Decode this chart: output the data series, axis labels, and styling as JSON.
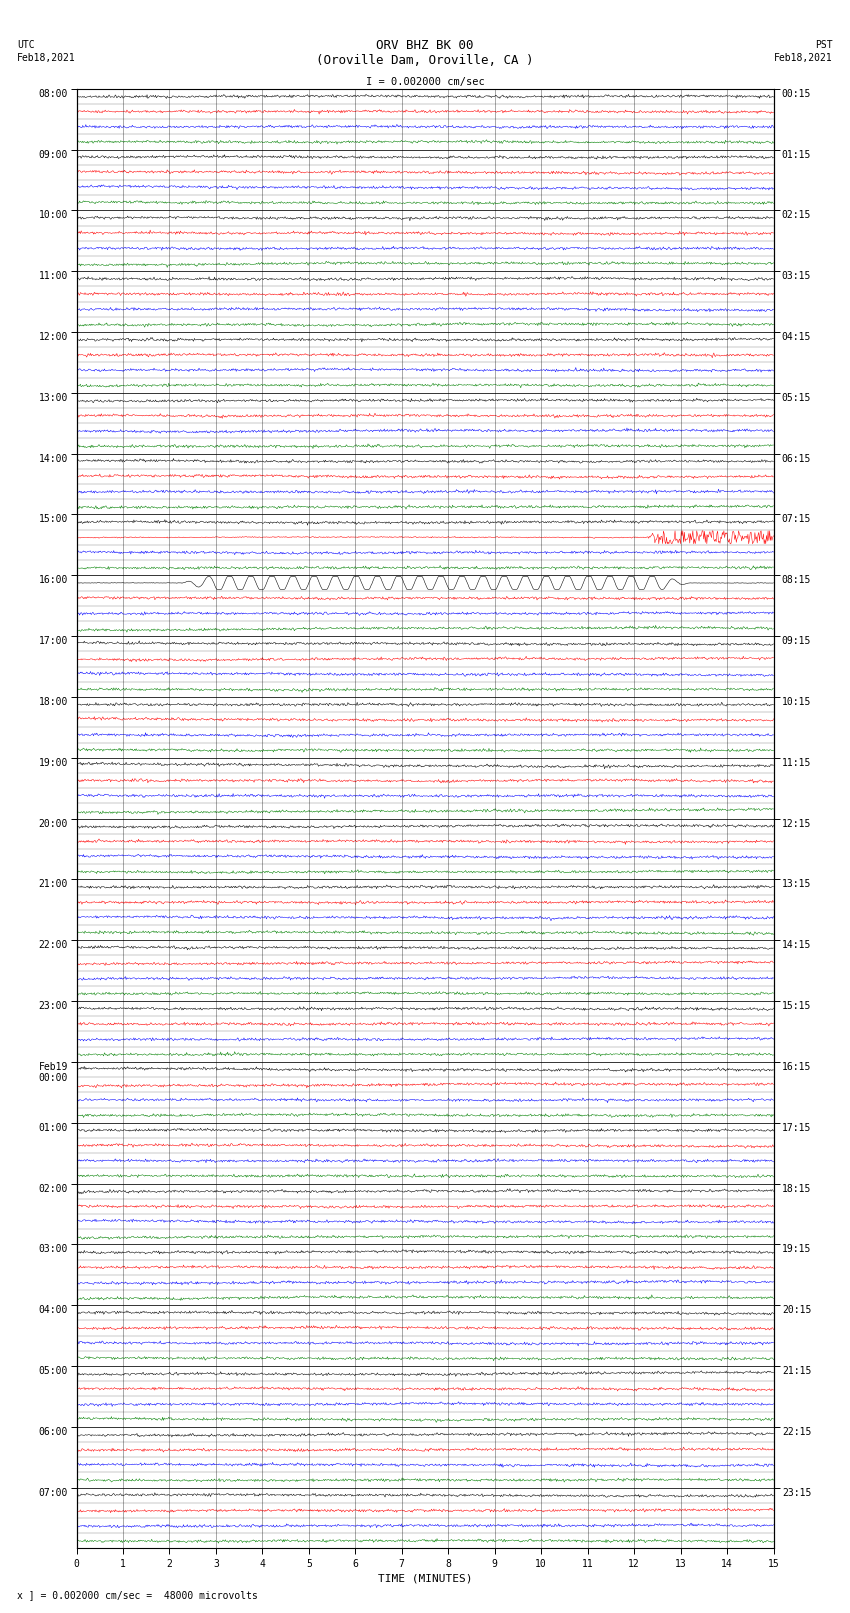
{
  "title_line1": "ORV BHZ BK 00",
  "title_line2": "(Oroville Dam, Oroville, CA )",
  "scale_text": "I = 0.002000 cm/sec",
  "bottom_text": "x ] = 0.002000 cm/sec =  48000 microvolts",
  "xlabel": "TIME (MINUTES)",
  "utc_label_list": [
    "08:00",
    "09:00",
    "10:00",
    "11:00",
    "12:00",
    "13:00",
    "14:00",
    "15:00",
    "16:00",
    "17:00",
    "18:00",
    "19:00",
    "20:00",
    "21:00",
    "22:00",
    "23:00",
    "Feb19\n00:00",
    "01:00",
    "02:00",
    "03:00",
    "04:00",
    "05:00",
    "06:00",
    "07:00"
  ],
  "pst_label_list": [
    "00:15",
    "01:15",
    "02:15",
    "03:15",
    "04:15",
    "05:15",
    "06:15",
    "07:15",
    "08:15",
    "09:15",
    "10:15",
    "11:15",
    "12:15",
    "13:15",
    "14:15",
    "15:15",
    "16:15",
    "17:15",
    "18:15",
    "19:15",
    "20:15",
    "21:15",
    "22:15",
    "23:15"
  ],
  "trace_colors": [
    "black",
    "red",
    "blue",
    "green"
  ],
  "num_rows": 96,
  "minutes": 15,
  "samples_per_row": 900,
  "noise_amplitude": 0.12,
  "fig_width": 8.5,
  "fig_height": 16.13,
  "dpi": 100
}
